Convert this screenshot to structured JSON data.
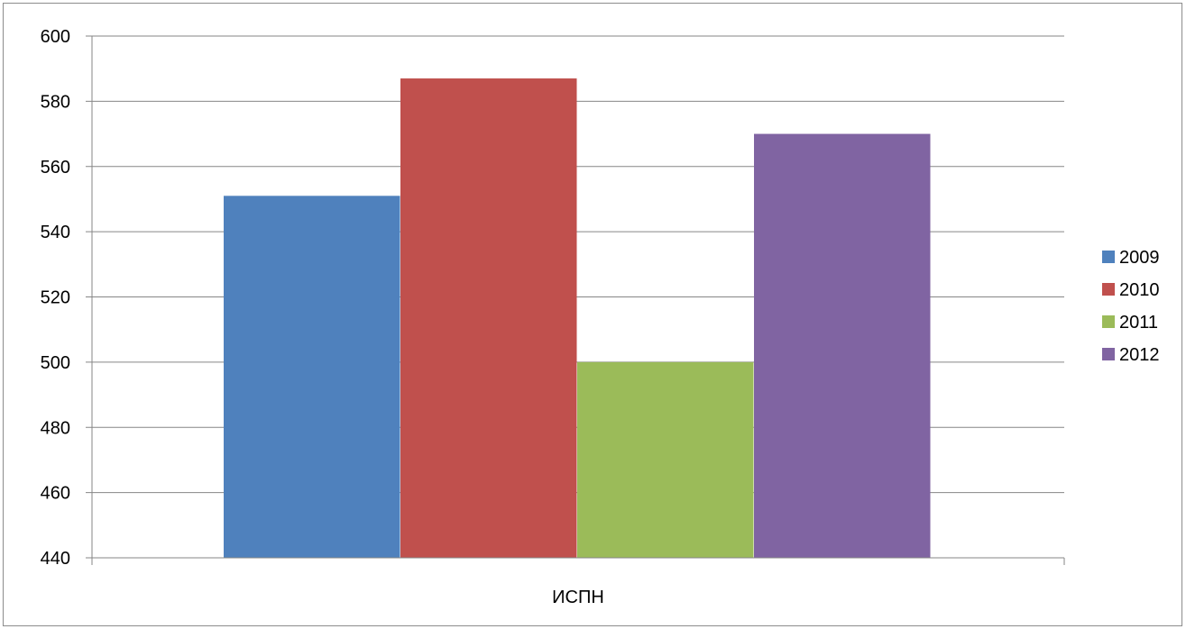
{
  "chart_data": {
    "type": "bar",
    "categories": [
      "ИСПН"
    ],
    "series": [
      {
        "name": "2009",
        "values": [
          551
        ],
        "color": "#4F81BD"
      },
      {
        "name": "2010",
        "values": [
          587
        ],
        "color": "#C0504D"
      },
      {
        "name": "2011",
        "values": [
          500
        ],
        "color": "#9BBB59"
      },
      {
        "name": "2012",
        "values": [
          570
        ],
        "color": "#8064A2"
      }
    ],
    "ylim": [
      440,
      600
    ],
    "yticks": [
      440,
      460,
      480,
      500,
      520,
      540,
      560,
      580,
      600
    ],
    "grid": true,
    "legend_position": "right"
  }
}
